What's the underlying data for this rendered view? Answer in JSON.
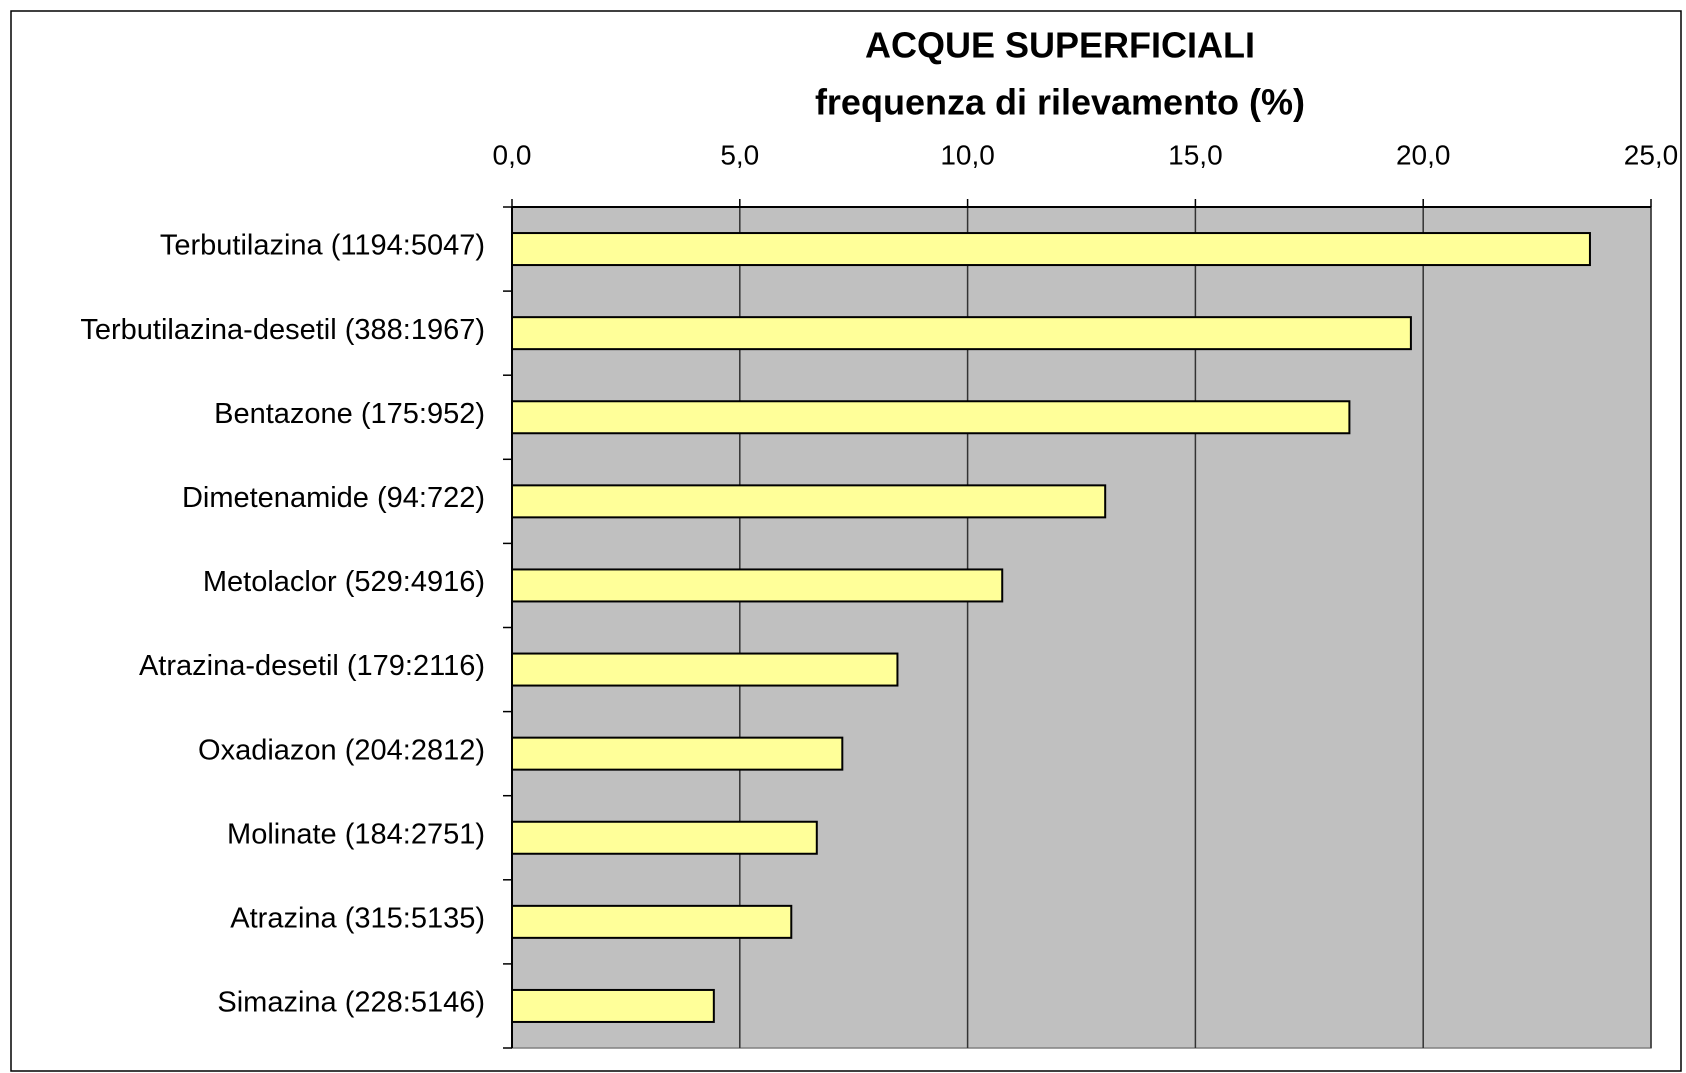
{
  "chart_data": {
    "type": "bar",
    "orientation": "horizontal",
    "title": "ACQUE SUPERFICIALI",
    "subtitle": "frequenza di rilevamento (%)",
    "categories": [
      "Terbutilazina (1194:5047)",
      "Terbutilazina-desetil (388:1967)",
      "Bentazone (175:952)",
      "Dimetenamide (94:722)",
      "Metolaclor (529:4916)",
      "Atrazina-desetil (179:2116)",
      "Oxadiazon (204:2812)",
      "Molinate (184:2751)",
      "Atrazina (315:5135)",
      "Simazina (228:5146)"
    ],
    "values": [
      23.66,
      19.73,
      18.38,
      13.02,
      10.76,
      8.46,
      7.25,
      6.69,
      6.13,
      4.43
    ],
    "color": "#ffff99",
    "xlim": [
      0,
      25
    ],
    "xticks": [
      {
        "value": 0,
        "label": "0,0"
      },
      {
        "value": 5,
        "label": "5,0"
      },
      {
        "value": 10,
        "label": "10,0"
      },
      {
        "value": 15,
        "label": "15,0"
      },
      {
        "value": 20,
        "label": "20,0"
      },
      {
        "value": 25,
        "label": "25,0"
      }
    ],
    "grid": true,
    "plot_background": "#c0c0c0"
  }
}
